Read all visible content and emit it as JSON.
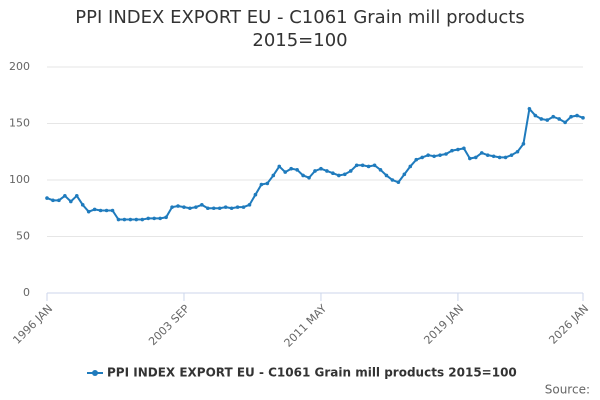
{
  "chart_data": {
    "type": "line",
    "title": "PPI INDEX EXPORT EU - C1061 Grain mill products 2015=100",
    "source": "Source:",
    "categories": [
      "1996 JAN",
      null,
      null,
      null,
      null,
      null,
      null,
      null,
      null,
      null,
      null,
      null,
      null,
      null,
      null,
      null,
      null,
      null,
      null,
      null,
      null,
      null,
      null,
      "2003 SEP",
      null,
      null,
      null,
      null,
      null,
      null,
      null,
      null,
      null,
      null,
      null,
      null,
      null,
      null,
      null,
      null,
      null,
      null,
      null,
      null,
      null,
      null,
      "2011 MAY",
      null,
      null,
      null,
      null,
      null,
      null,
      null,
      null,
      null,
      null,
      null,
      null,
      null,
      null,
      null,
      null,
      null,
      null,
      null,
      null,
      null,
      null,
      "2019 JAN",
      null,
      null,
      null,
      null,
      null,
      null,
      null,
      null,
      null,
      null,
      null,
      null,
      null,
      null,
      null,
      null,
      null,
      null,
      null,
      null,
      "2026 JAN"
    ],
    "series": [
      {
        "name": "PPI INDEX EXPORT EU - C1061 Grain mill products 2015=100",
        "color": "#1f7bbd",
        "values": [
          84,
          82,
          82,
          86,
          81,
          86,
          78,
          72,
          74,
          73,
          73,
          73,
          65,
          65,
          65,
          65,
          65,
          66,
          66,
          66,
          67,
          76,
          77,
          76,
          75,
          76,
          78,
          75,
          75,
          75,
          76,
          75,
          76,
          76,
          78,
          87,
          96,
          97,
          104,
          112,
          107,
          110,
          109,
          104,
          102,
          108,
          110,
          108,
          106,
          104,
          105,
          108,
          113,
          113,
          112,
          113,
          109,
          104,
          100,
          98,
          105,
          112,
          118,
          120,
          122,
          121,
          122,
          123,
          126,
          127,
          128,
          119,
          120,
          124,
          122,
          121,
          120,
          120,
          122,
          125,
          132,
          163,
          157,
          154,
          153,
          156,
          154,
          151,
          156,
          157,
          155
        ]
      }
    ],
    "ylim": [
      0,
      200
    ],
    "yticks": [
      0,
      50,
      100,
      150,
      200
    ],
    "grid": true
  }
}
